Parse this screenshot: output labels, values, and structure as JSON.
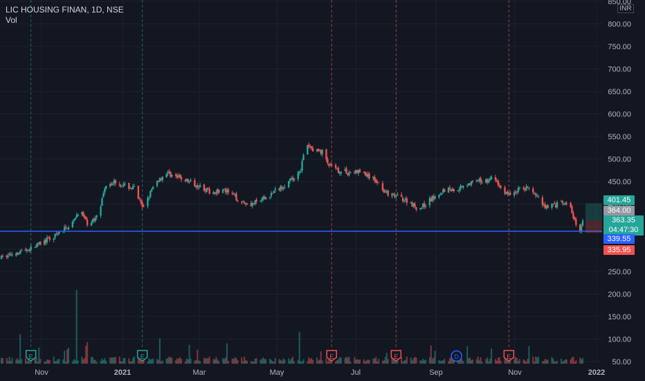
{
  "legend": {
    "symbol_line": "LIC HOUSING FINAN, 1D, NSE",
    "volume_label": "Vol"
  },
  "currency": "INR",
  "colors": {
    "background": "#131722",
    "up": "#26a69a",
    "down": "#ef5350",
    "grid": "#1e222d",
    "axis_text": "#b2b5be",
    "support_line": "#2962ff"
  },
  "price_tags": {
    "high": "401.45",
    "prev_close": "364.00",
    "last": "363.35",
    "countdown": "04:47:30",
    "horizontal_line": "339.55",
    "low": "335.95"
  },
  "chart_data": {
    "type": "candlestick",
    "title": "LIC HOUSING FINAN, 1D, NSE",
    "y_axis": {
      "ticks": [
        "850.00",
        "800.00",
        "750.00",
        "700.00",
        "650.00",
        "600.00",
        "550.00",
        "500.00",
        "450.00",
        "400.00",
        "350.00",
        "300.00",
        "250.00",
        "200.00",
        "150.00",
        "100.00",
        "50.00"
      ],
      "range": [
        50,
        850
      ]
    },
    "x_axis": {
      "ticks": [
        "Nov",
        "2021",
        "Mar",
        "May",
        "Jul",
        "Sep",
        "Nov",
        "2022"
      ]
    },
    "horizontal_line": 339.55,
    "price_path": [
      [
        "2020-10-15",
        280
      ],
      [
        "2020-10-25",
        292
      ],
      [
        "2020-11-05",
        300
      ],
      [
        "2020-11-15",
        315
      ],
      [
        "2020-11-25",
        330
      ],
      [
        "2020-12-01",
        345
      ],
      [
        "2020-12-08",
        360
      ],
      [
        "2020-12-12",
        390
      ],
      [
        "2020-12-18",
        355
      ],
      [
        "2020-12-23",
        365
      ],
      [
        "2020-12-28",
        400
      ],
      [
        "2021-01-01",
        445
      ],
      [
        "2021-01-08",
        450
      ],
      [
        "2021-01-15",
        440
      ],
      [
        "2021-01-22",
        435
      ],
      [
        "2021-01-28",
        390
      ],
      [
        "2021-02-02",
        420
      ],
      [
        "2021-02-08",
        450
      ],
      [
        "2021-02-15",
        470
      ],
      [
        "2021-02-22",
        460
      ],
      [
        "2021-02-28",
        455
      ],
      [
        "2021-03-05",
        448
      ],
      [
        "2021-03-12",
        440
      ],
      [
        "2021-03-20",
        425
      ],
      [
        "2021-03-28",
        432
      ],
      [
        "2021-04-05",
        420
      ],
      [
        "2021-04-12",
        405
      ],
      [
        "2021-04-20",
        400
      ],
      [
        "2021-04-28",
        410
      ],
      [
        "2021-05-05",
        425
      ],
      [
        "2021-05-12",
        440
      ],
      [
        "2021-05-20",
        455
      ],
      [
        "2021-05-26",
        480
      ],
      [
        "2021-05-30",
        530
      ],
      [
        "2021-06-05",
        520
      ],
      [
        "2021-06-12",
        515
      ],
      [
        "2021-06-16",
        485
      ],
      [
        "2021-06-22",
        475
      ],
      [
        "2021-06-30",
        470
      ],
      [
        "2021-07-08",
        472
      ],
      [
        "2021-07-15",
        462
      ],
      [
        "2021-07-22",
        450
      ],
      [
        "2021-07-30",
        420
      ],
      [
        "2021-08-08",
        415
      ],
      [
        "2021-08-15",
        405
      ],
      [
        "2021-08-22",
        388
      ],
      [
        "2021-08-30",
        408
      ],
      [
        "2021-09-06",
        425
      ],
      [
        "2021-09-12",
        435
      ],
      [
        "2021-09-18",
        430
      ],
      [
        "2021-09-25",
        445
      ],
      [
        "2021-10-02",
        448
      ],
      [
        "2021-10-10",
        452
      ],
      [
        "2021-10-17",
        458
      ],
      [
        "2021-10-22",
        435
      ],
      [
        "2021-10-28",
        420
      ],
      [
        "2021-11-03",
        430
      ],
      [
        "2021-11-10",
        438
      ],
      [
        "2021-11-17",
        420
      ],
      [
        "2021-11-24",
        395
      ],
      [
        "2021-12-02",
        398
      ],
      [
        "2021-12-08",
        402
      ],
      [
        "2021-12-13",
        390
      ],
      [
        "2021-12-17",
        352
      ],
      [
        "2021-12-20",
        345
      ],
      [
        "2021-12-22",
        363
      ]
    ],
    "volume_range": [
      0,
      250
    ],
    "events": [
      {
        "date": "2020-11-06",
        "marker": "E",
        "kind": "earnings-past"
      },
      {
        "date": "2021-01-28",
        "marker": "E",
        "kind": "earnings-past"
      },
      {
        "date": "2021-06-18",
        "marker": "E",
        "kind": "earnings"
      },
      {
        "date": "2021-08-05",
        "marker": "E",
        "kind": "earnings"
      },
      {
        "date": "2021-09-19",
        "marker": "D",
        "kind": "dividend"
      },
      {
        "date": "2021-10-28",
        "marker": "E",
        "kind": "earnings"
      }
    ]
  }
}
